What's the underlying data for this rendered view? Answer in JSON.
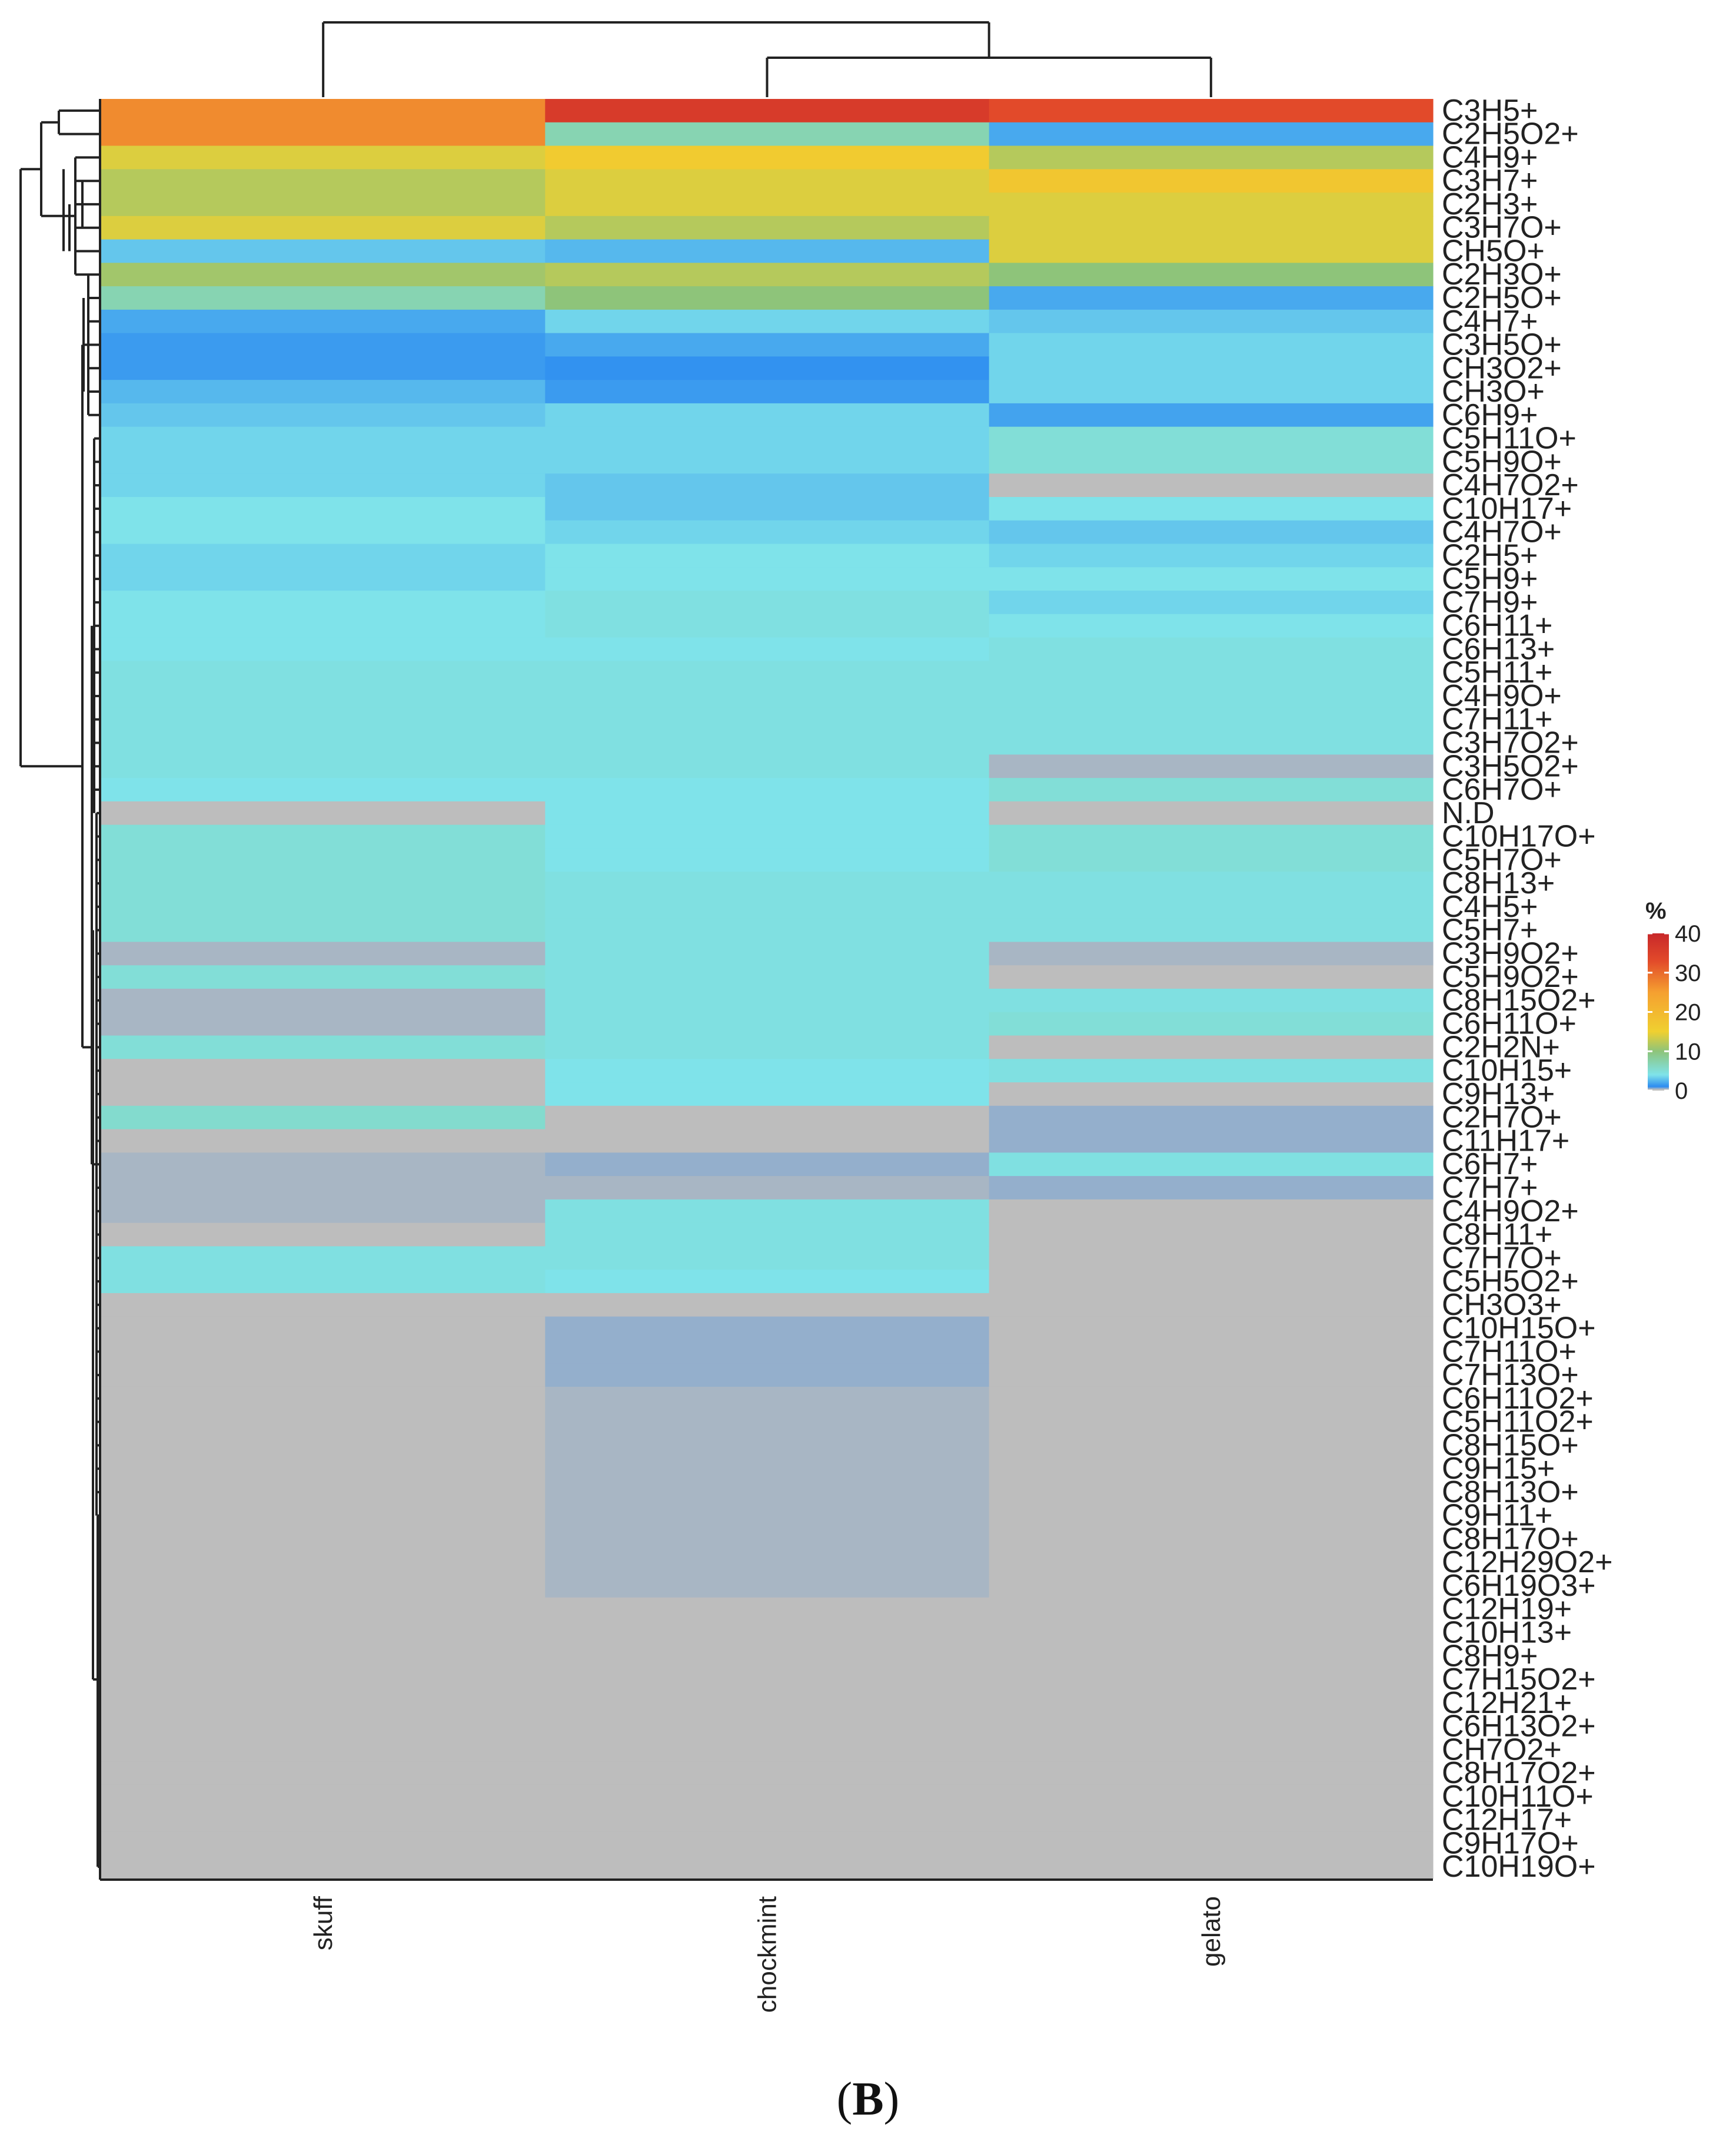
{
  "chart_data": {
    "type": "heatmap",
    "title": "",
    "columns": [
      "skuff",
      "chockmint",
      "gelato"
    ],
    "rows": [
      "C3H5+",
      "C2H5O2+",
      "C4H9+",
      "C3H7+",
      "C2H3+",
      "C3H7O+",
      "CH5O+",
      "C2H3O+",
      "C2H5O+",
      "C4H7+",
      "C3H5O+",
      "CH3O2+",
      "CH3O+",
      "C6H9+",
      "C5H11O+",
      "C5H9O+",
      "C4H7O2+",
      "C10H17+",
      "C4H7O+",
      "C2H5+",
      "C5H9+",
      "C7H9+",
      "C6H11+",
      "C6H13+",
      "C5H11+",
      "C4H9O+",
      "C7H11+",
      "C3H7O2+",
      "C3H5O2+",
      "C6H7O+",
      "N.D",
      "C10H17O+",
      "C5H7O+",
      "C8H13+",
      "C4H5+",
      "C5H7+",
      "C3H9O2+",
      "C5H9O2+",
      "C8H15O2+",
      "C6H11O+",
      "C2H2N+",
      "C10H15+",
      "C9H13+",
      "C2H7O+",
      "C11H17+",
      "C6H7+",
      "C7H7+",
      "C4H9O2+",
      "C8H11+",
      "C7H7O+",
      "C5H5O2+",
      "CH3O3+",
      "C10H15O+",
      "C7H11O+",
      "C7H13O+",
      "C6H11O2+",
      "C5H11O2+",
      "C8H15O+",
      "C9H15+",
      "C8H13O+",
      "C9H11+",
      "C8H17O+",
      "C12H29O2+",
      "C6H19O3+",
      "C12H19+",
      "C10H13+",
      "C8H9+",
      "C7H15O2+",
      "C12H21+",
      "C6H13O2+",
      "CH7O2+",
      "C8H17O2+",
      "C10H11O+",
      "C12H17+",
      "C9H17O+",
      "C10H19O+"
    ],
    "values": [
      [
        27,
        36,
        33
      ],
      [
        27,
        7,
        2
      ],
      [
        14,
        16,
        12
      ],
      [
        12,
        14,
        17
      ],
      [
        12,
        14,
        14
      ],
      [
        14,
        12,
        14
      ],
      [
        3,
        2.5,
        14
      ],
      [
        11,
        12,
        10
      ],
      [
        7,
        10,
        2
      ],
      [
        2,
        3.5,
        3
      ],
      [
        1.5,
        2,
        3.5
      ],
      [
        1.5,
        1.2,
        3.5
      ],
      [
        2.5,
        1.5,
        3.5
      ],
      [
        3,
        3.5,
        1.8
      ],
      [
        3.5,
        3.5,
        5
      ],
      [
        3.5,
        3.5,
        5
      ],
      [
        3.5,
        3,
        0.3
      ],
      [
        4,
        3,
        4
      ],
      [
        4,
        3.5,
        3
      ],
      [
        3.5,
        4,
        3.5
      ],
      [
        3.5,
        4,
        4
      ],
      [
        4,
        4.5,
        3.5
      ],
      [
        4,
        4.5,
        4
      ],
      [
        4,
        4,
        4.5
      ],
      [
        4.5,
        4.5,
        4.5
      ],
      [
        4.5,
        4.5,
        4.5
      ],
      [
        4.5,
        4.5,
        4.5
      ],
      [
        4.5,
        4.5,
        4.5
      ],
      [
        4.5,
        4.5,
        0.4
      ],
      [
        4,
        4,
        5
      ],
      [
        0,
        4,
        0
      ],
      [
        5,
        4,
        5
      ],
      [
        5,
        4,
        5
      ],
      [
        5,
        4.5,
        4.5
      ],
      [
        5,
        4.5,
        4.5
      ],
      [
        5,
        4.5,
        4.5
      ],
      [
        0.4,
        4.5,
        0.4
      ],
      [
        5,
        4.5,
        0
      ],
      [
        0.4,
        4.5,
        4.5
      ],
      [
        0.4,
        4.5,
        5
      ],
      [
        5,
        4.5,
        0.3
      ],
      [
        0,
        4,
        4.5
      ],
      [
        0,
        4,
        0
      ],
      [
        5.5,
        0,
        0.5
      ],
      [
        0,
        0,
        0.5
      ],
      [
        0.4,
        0.5,
        4.5
      ],
      [
        0.4,
        0.4,
        0.5
      ],
      [
        0.4,
        4.5,
        0.3
      ],
      [
        0.3,
        4.5,
        0.3
      ],
      [
        4.5,
        4.5,
        0.3
      ],
      [
        4.5,
        4,
        0.3
      ],
      [
        0,
        0,
        0.3
      ],
      [
        0,
        0.5,
        0
      ],
      [
        0.3,
        0.5,
        0
      ],
      [
        0.3,
        0.5,
        0
      ],
      [
        0.3,
        0.4,
        0
      ],
      [
        0.1,
        0.4,
        0
      ],
      [
        0.1,
        0.4,
        0
      ],
      [
        0.1,
        0.4,
        0
      ],
      [
        0.1,
        0.4,
        0
      ],
      [
        0.1,
        0.4,
        0
      ],
      [
        0.1,
        0.4,
        0
      ],
      [
        0.1,
        0.4,
        0.3
      ],
      [
        0.1,
        0.4,
        0.3
      ],
      [
        0,
        0,
        0
      ],
      [
        0,
        0,
        0
      ],
      [
        0,
        0.3,
        0
      ],
      [
        0,
        0.3,
        0
      ],
      [
        0,
        0.2,
        0
      ],
      [
        0,
        0.2,
        0
      ],
      [
        0,
        0,
        0
      ],
      [
        0,
        0,
        0
      ],
      [
        0,
        0,
        0
      ],
      [
        0,
        0,
        0
      ],
      [
        0,
        0.1,
        0
      ],
      [
        0,
        0,
        0
      ]
    ],
    "legend": {
      "title": "%",
      "ticks": [
        40,
        30,
        20,
        10,
        0
      ],
      "range": [
        0,
        40
      ]
    },
    "legend_placement": "right",
    "dendrograms": [
      "rows",
      "columns"
    ],
    "colors": [
      "#bdbdbd",
      "#2d8cf0",
      "#7fe3ea",
      "#8ec47a",
      "#f0d030",
      "#f5a030",
      "#e24a2a",
      "#c8282a"
    ],
    "panel_label": "B"
  }
}
